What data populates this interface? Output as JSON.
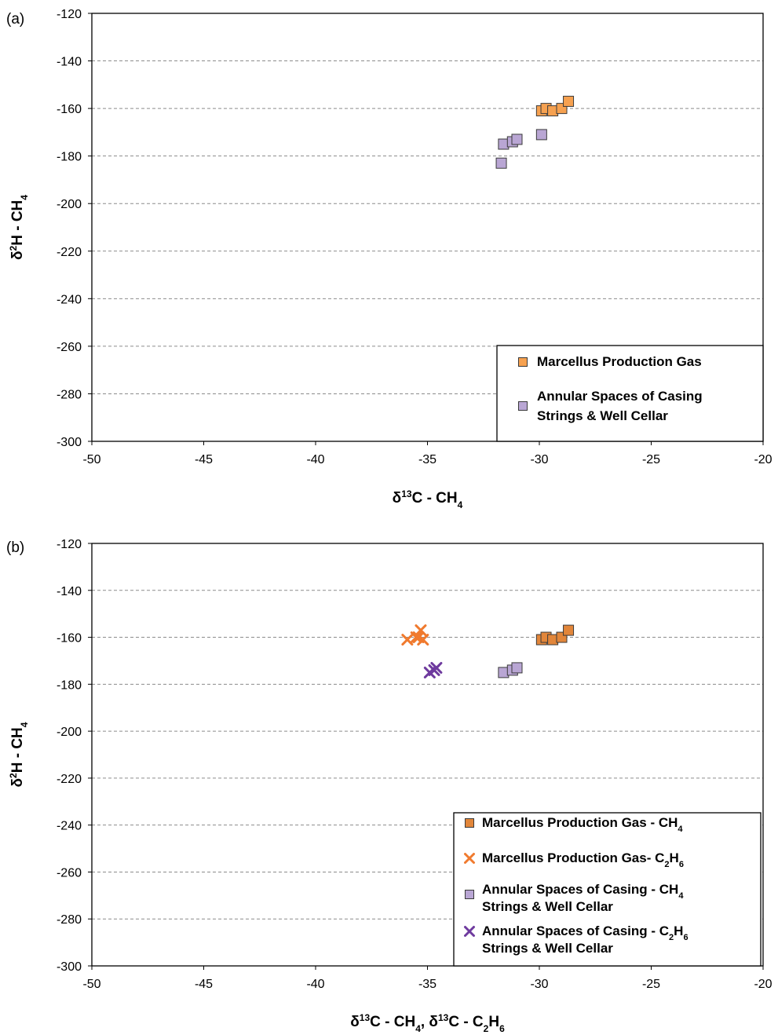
{
  "chart_data": [
    {
      "type": "scatter",
      "panel_label": "(a)",
      "xlabel": "δ13C - CH4",
      "xlabel_parts": [
        {
          "t": "δ",
          "s": "n"
        },
        {
          "t": "13",
          "s": "sup"
        },
        {
          "t": "C - CH",
          "s": "n"
        },
        {
          "t": "4",
          "s": "sub"
        }
      ],
      "ylabel": "δ2H - CH4",
      "ylabel_parts": [
        {
          "t": "δ",
          "s": "n"
        },
        {
          "t": "2",
          "s": "sup"
        },
        {
          "t": "H - CH",
          "s": "n"
        },
        {
          "t": "4",
          "s": "sub"
        }
      ],
      "xlim": [
        -50,
        -20
      ],
      "ylim": [
        -300,
        -120
      ],
      "xticks": [
        -50,
        -45,
        -40,
        -35,
        -30,
        -25,
        -20
      ],
      "yticks": [
        -300,
        -280,
        -260,
        -240,
        -220,
        -200,
        -180,
        -160,
        -140,
        -120
      ],
      "xtick_labels": [
        "-50",
        "-45",
        "-40",
        "-35",
        "-30",
        "-25",
        "-20"
      ],
      "ytick_labels": [
        "-300",
        "-280",
        "-260",
        "-240",
        "-220",
        "-200",
        "-180",
        "-160",
        "-140",
        "-120"
      ],
      "grid": "horizontal dashed",
      "legend_position": "bottom-right",
      "series": [
        {
          "name": "Marcellus Production Gas",
          "marker": "square",
          "color": "#f6a150",
          "points": [
            [
              -29.9,
              -161
            ],
            [
              -29.7,
              -160
            ],
            [
              -29.4,
              -161
            ],
            [
              -29.0,
              -160
            ],
            [
              -28.7,
              -157
            ]
          ]
        },
        {
          "name": "Annular Spaces of Casing Strings & Well Cellar",
          "legend_lines": [
            "Annular Spaces of Casing",
            "Strings & Well Cellar"
          ],
          "marker": "square",
          "color": "#b9a6d4",
          "points": [
            [
              -31.7,
              -183
            ],
            [
              -31.6,
              -175
            ],
            [
              -31.2,
              -174
            ],
            [
              -31.0,
              -173
            ],
            [
              -29.9,
              -171
            ]
          ]
        }
      ]
    },
    {
      "type": "scatter",
      "panel_label": "(b)",
      "xlabel": "δ13C - CH4, δ13C - C2H6",
      "xlabel_parts": [
        {
          "t": "δ",
          "s": "n"
        },
        {
          "t": "13",
          "s": "sup"
        },
        {
          "t": "C - CH",
          "s": "n"
        },
        {
          "t": "4",
          "s": "sub"
        },
        {
          "t": ", δ",
          "s": "n"
        },
        {
          "t": "13",
          "s": "sup"
        },
        {
          "t": "C - C",
          "s": "n"
        },
        {
          "t": "2",
          "s": "sub"
        },
        {
          "t": "H",
          "s": "n"
        },
        {
          "t": "6",
          "s": "sub"
        }
      ],
      "ylabel": "δ2H - CH4",
      "ylabel_parts": [
        {
          "t": "δ",
          "s": "n"
        },
        {
          "t": "2",
          "s": "sup"
        },
        {
          "t": "H - CH",
          "s": "n"
        },
        {
          "t": "4",
          "s": "sub"
        }
      ],
      "xlim": [
        -50,
        -20
      ],
      "ylim": [
        -300,
        -120
      ],
      "xticks": [
        -50,
        -45,
        -40,
        -35,
        -30,
        -25,
        -20
      ],
      "yticks": [
        -300,
        -280,
        -260,
        -240,
        -220,
        -200,
        -180,
        -160,
        -140,
        -120
      ],
      "xtick_labels": [
        "-50",
        "-45",
        "-40",
        "-35",
        "-30",
        "-25",
        "-20"
      ],
      "ytick_labels": [
        "-300",
        "-280",
        "-260",
        "-240",
        "-220",
        "-200",
        "-180",
        "-160",
        "-140",
        "-120"
      ],
      "grid": "horizontal dashed",
      "legend_position": "bottom-right",
      "series": [
        {
          "name": "Marcellus Production Gas - CH4",
          "legend_parts": [
            [
              {
                "t": "Marcellus Production Gas - CH",
                "s": "n"
              },
              {
                "t": "4",
                "s": "sub"
              }
            ]
          ],
          "marker": "square",
          "color": "#e2863a",
          "points": [
            [
              -29.9,
              -161
            ],
            [
              -29.7,
              -160
            ],
            [
              -29.4,
              -161
            ],
            [
              -29.0,
              -160
            ],
            [
              -28.7,
              -157
            ]
          ]
        },
        {
          "name": "Marcellus Production Gas- C2H6",
          "legend_parts": [
            [
              {
                "t": "Marcellus Production Gas",
                "s": "n"
              },
              {
                "t": "- C",
                "s": "n"
              },
              {
                "t": "2",
                "s": "sub"
              },
              {
                "t": "H",
                "s": "n"
              },
              {
                "t": "6",
                "s": "sub"
              }
            ]
          ],
          "marker": "x",
          "color": "#f07a2e",
          "points": [
            [
              -35.9,
              -161
            ],
            [
              -35.5,
              -160
            ],
            [
              -35.3,
              -157
            ],
            [
              -35.2,
              -161
            ],
            [
              -35.4,
              -160
            ]
          ]
        },
        {
          "name": "Annular Spaces of Casing Strings & Well Cellar - CH4",
          "legend_parts": [
            [
              {
                "t": "Annular Spaces of Casing  - CH",
                "s": "n"
              },
              {
                "t": "4",
                "s": "sub"
              }
            ],
            [
              {
                "t": "Strings & Well Cellar",
                "s": "n"
              }
            ]
          ],
          "marker": "square",
          "color": "#b9a6d4",
          "points": [
            [
              -31.6,
              -175
            ],
            [
              -31.2,
              -174
            ],
            [
              -31.0,
              -173
            ]
          ]
        },
        {
          "name": "Annular Spaces of Casing Strings & Well Cellar - C2H6",
          "legend_parts": [
            [
              {
                "t": "Annular Spaces of Casing  - C",
                "s": "n"
              },
              {
                "t": "2",
                "s": "sub"
              },
              {
                "t": "H",
                "s": "n"
              },
              {
                "t": "6",
                "s": "sub"
              }
            ],
            [
              {
                "t": "Strings & Well Cellar",
                "s": "n"
              }
            ]
          ],
          "marker": "x",
          "color": "#6e3a9e",
          "points": [
            [
              -34.9,
              -175
            ],
            [
              -34.7,
              -174
            ],
            [
              -34.6,
              -173
            ]
          ]
        }
      ]
    }
  ]
}
